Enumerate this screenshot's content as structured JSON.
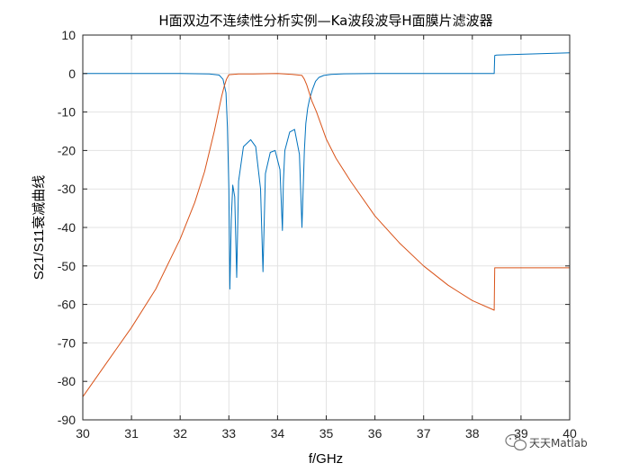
{
  "chart_data": {
    "type": "line",
    "title": "H面双边不连续性分析实例—Ka波段波导H面膜片滤波器",
    "xlabel": "f/GHz",
    "ylabel": "S21/S11衰减曲线",
    "xlim": [
      30,
      40
    ],
    "ylim": [
      -90,
      10
    ],
    "xticks": [
      "30",
      "31",
      "32",
      "33",
      "34",
      "35",
      "36",
      "37",
      "38",
      "39",
      "40"
    ],
    "yticks": [
      "10",
      "0",
      "-10",
      "-20",
      "-30",
      "-40",
      "-50",
      "-60",
      "-70",
      "-80",
      "-90"
    ],
    "grid": true,
    "series": [
      {
        "color": "#0072BD",
        "x": [
          30,
          32.0,
          32.6,
          32.8,
          32.88,
          32.94,
          32.97,
          33.0,
          33.02,
          33.05,
          33.08,
          33.12,
          33.16,
          33.2,
          33.3,
          33.45,
          33.55,
          33.65,
          33.7,
          33.75,
          33.85,
          33.95,
          34.05,
          34.1,
          34.12,
          34.15,
          34.25,
          34.35,
          34.45,
          34.5,
          34.55,
          34.58,
          34.62,
          34.66,
          34.72,
          34.78,
          34.85,
          34.95,
          35.1,
          35.3,
          36,
          37,
          38,
          38.45,
          38.46,
          38.5,
          39,
          40
        ],
        "y": [
          0,
          0,
          -0.1,
          -0.4,
          -1.5,
          -5,
          -14,
          -30,
          -56,
          -38,
          -29,
          -32,
          -53,
          -28,
          -19,
          -17.2,
          -19,
          -30,
          -51.5,
          -26,
          -20.5,
          -20,
          -25,
          -40.8,
          -28,
          -20,
          -15.2,
          -14.5,
          -21,
          -40,
          -20,
          -13,
          -9,
          -6.5,
          -4,
          -2,
          -1,
          -0.5,
          -0.2,
          -0.1,
          0,
          0,
          0,
          0,
          4.7,
          4.8,
          5.0,
          5.4
        ]
      },
      {
        "color": "#D95319",
        "x": [
          30,
          30.5,
          31,
          31.5,
          32,
          32.3,
          32.5,
          32.7,
          32.8,
          32.85,
          32.9,
          32.95,
          33.0,
          33.2,
          33.5,
          34.0,
          34.3,
          34.5,
          34.55,
          34.6,
          34.65,
          34.7,
          34.8,
          34.9,
          35.0,
          35.2,
          35.5,
          36,
          36.5,
          37,
          37.5,
          38,
          38.45,
          38.46,
          38.5,
          39,
          40
        ],
        "y": [
          -84,
          -75,
          -66,
          -56,
          -43,
          -33.5,
          -25.5,
          -15,
          -9,
          -6,
          -3.5,
          -1.5,
          -0.3,
          -0.1,
          -0.1,
          0,
          -0.2,
          -0.5,
          -1.5,
          -3,
          -5,
          -7,
          -10,
          -13.5,
          -17,
          -22,
          -28,
          -37,
          -44,
          -50,
          -55,
          -59,
          -61.5,
          -50.5,
          -50.5,
          -50.5,
          -50.5
        ]
      }
    ]
  },
  "watermark": {
    "text": "天天Matlab",
    "icon": "wechat-icon"
  }
}
